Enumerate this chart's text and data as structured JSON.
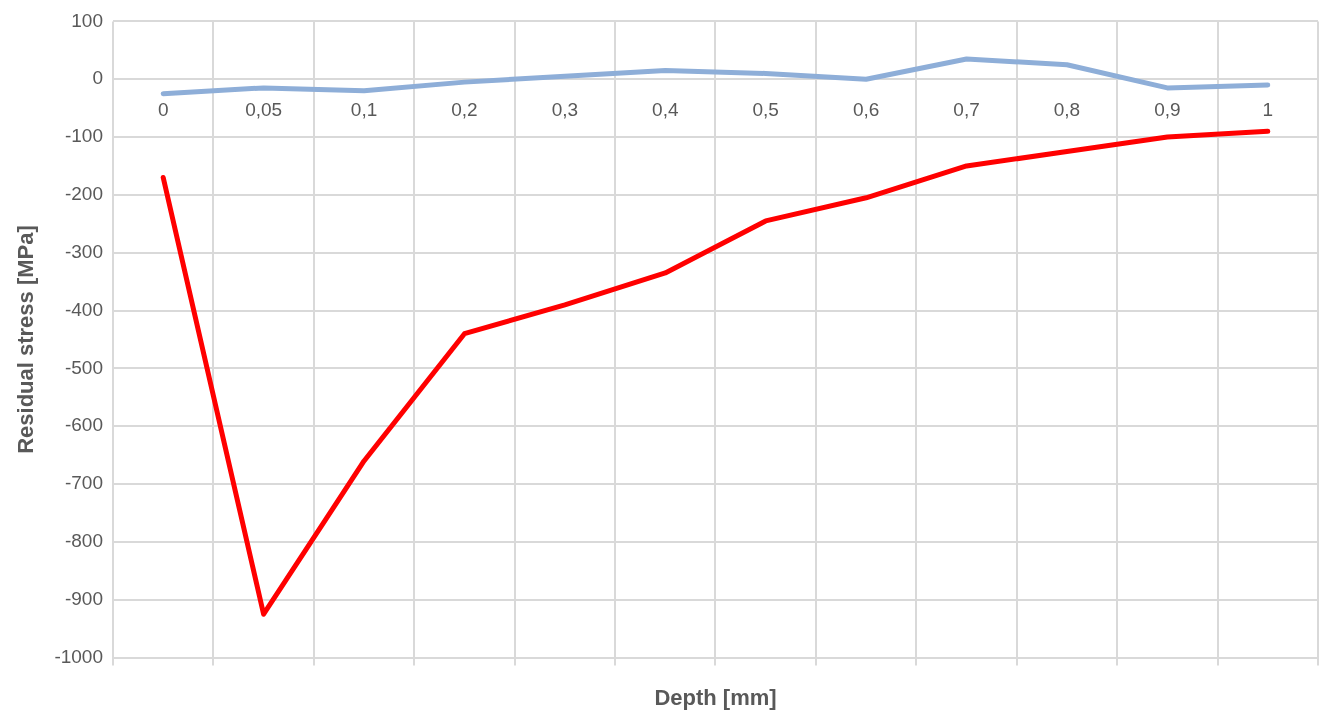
{
  "chart_data": {
    "type": "line",
    "xlabel": "Depth [mm]",
    "ylabel": "Residual stress [MPa]",
    "categories": [
      "0",
      "0,05",
      "0,1",
      "0,2",
      "0,3",
      "0,4",
      "0,5",
      "0,6",
      "0,7",
      "0,8",
      "0,9",
      "1"
    ],
    "series": [
      {
        "color": "#8eaed8",
        "values": [
          -25,
          -15,
          -20,
          -5,
          5,
          15,
          10,
          0,
          35,
          25,
          -15,
          -10
        ]
      },
      {
        "color": "#ff0000",
        "values": [
          -170,
          -925,
          -660,
          -440,
          -390,
          -335,
          -245,
          -205,
          -150,
          -125,
          -100,
          -90
        ]
      }
    ],
    "ylim": [
      -1000,
      100
    ],
    "yticks": [
      -1000,
      -900,
      -800,
      -700,
      -600,
      -500,
      -400,
      -300,
      -200,
      -100,
      0,
      100
    ],
    "grid": true,
    "legend": false,
    "marker": "none",
    "line_style": "solid"
  }
}
